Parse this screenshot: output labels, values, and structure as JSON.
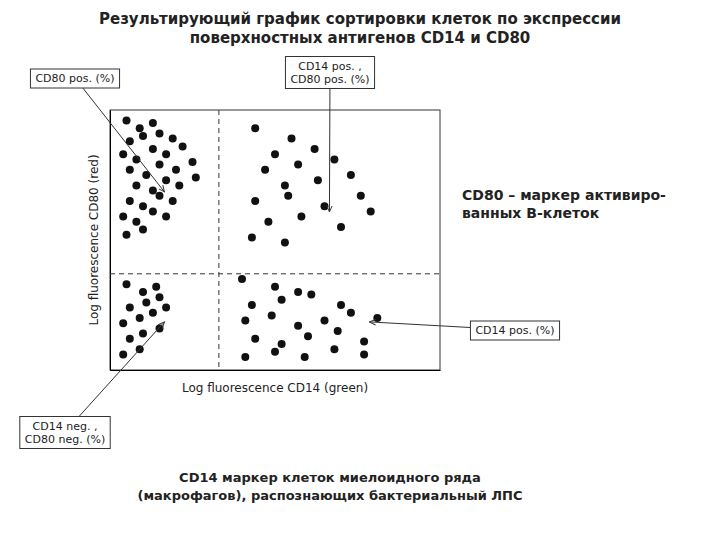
{
  "chart_data": {
    "type": "scatter",
    "title": "Результирующий график сортировки клеток по экспрессии\nповерхностных антигенов CD14 и CD80",
    "x_label": "Log fluorescence CD14 (green)",
    "y_label": "Log fluorescence CD80 (red)",
    "xlim": [
      0,
      1
    ],
    "ylim": [
      0,
      1
    ],
    "tick_labels": false,
    "grid": false,
    "color": "#111111",
    "vlines": [
      0.33
    ],
    "hlines": [
      0.37
    ],
    "series": [
      {
        "x": [
          0.05,
          0.09,
          0.13,
          0.06,
          0.1,
          0.15,
          0.19,
          0.04,
          0.08,
          0.13,
          0.17,
          0.22,
          0.06,
          0.11,
          0.15,
          0.2,
          0.25,
          0.08,
          0.13,
          0.17,
          0.21,
          0.26,
          0.06,
          0.1,
          0.15,
          0.19,
          0.04,
          0.08,
          0.13,
          0.17,
          0.05,
          0.1
        ],
        "values": [
          0.96,
          0.93,
          0.95,
          0.88,
          0.9,
          0.91,
          0.89,
          0.83,
          0.81,
          0.85,
          0.83,
          0.86,
          0.77,
          0.75,
          0.79,
          0.77,
          0.8,
          0.71,
          0.69,
          0.73,
          0.71,
          0.74,
          0.65,
          0.63,
          0.67,
          0.65,
          0.59,
          0.57,
          0.61,
          0.59,
          0.52,
          0.54
        ]
      },
      {
        "x": [
          0.44,
          0.55,
          0.5,
          0.62,
          0.47,
          0.57,
          0.68,
          0.53,
          0.63,
          0.73,
          0.44,
          0.54,
          0.65,
          0.76,
          0.48,
          0.58,
          0.7,
          0.79,
          0.43,
          0.53
        ],
        "values": [
          0.93,
          0.89,
          0.83,
          0.85,
          0.77,
          0.79,
          0.81,
          0.71,
          0.73,
          0.75,
          0.65,
          0.67,
          0.63,
          0.67,
          0.57,
          0.59,
          0.55,
          0.61,
          0.51,
          0.49
        ]
      },
      {
        "x": [
          0.05,
          0.1,
          0.14,
          0.06,
          0.11,
          0.15,
          0.04,
          0.09,
          0.13,
          0.17,
          0.06,
          0.1,
          0.15,
          0.04,
          0.09
        ],
        "values": [
          0.33,
          0.3,
          0.32,
          0.24,
          0.26,
          0.28,
          0.18,
          0.2,
          0.22,
          0.24,
          0.12,
          0.14,
          0.16,
          0.06,
          0.08
        ]
      },
      {
        "x": [
          0.4,
          0.5,
          0.57,
          0.43,
          0.52,
          0.61,
          0.7,
          0.41,
          0.49,
          0.57,
          0.65,
          0.73,
          0.81,
          0.44,
          0.52,
          0.6,
          0.69,
          0.77,
          0.41,
          0.5,
          0.59,
          0.68,
          0.77
        ],
        "values": [
          0.35,
          0.32,
          0.3,
          0.25,
          0.27,
          0.29,
          0.25,
          0.19,
          0.21,
          0.17,
          0.19,
          0.22,
          0.2,
          0.12,
          0.1,
          0.13,
          0.15,
          0.11,
          0.05,
          0.07,
          0.05,
          0.08,
          0.06
        ]
      }
    ],
    "annotations": [
      "CD80 pos. (%)",
      "CD14 pos. ,\nCD80 pos. (%)",
      "CD14 pos. (%)",
      "CD14 neg. ,\nCD80 neg. (%)",
      "CD80 – маркер активиро-\nванных B-клеток",
      "CD14 маркер клеток миелоидного ряда\n(макрофагов), распознающих бактериальный ЛПС"
    ]
  }
}
